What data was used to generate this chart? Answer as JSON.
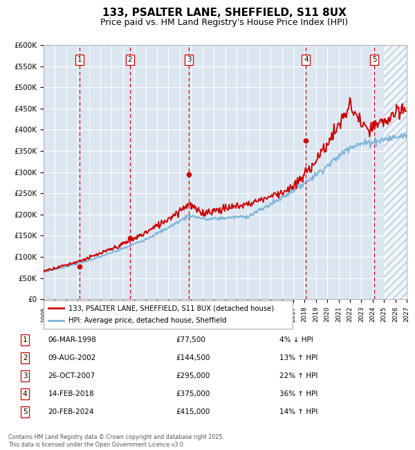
{
  "title": "133, PSALTER LANE, SHEFFIELD, S11 8UX",
  "subtitle": "Price paid vs. HM Land Registry's House Price Index (HPI)",
  "title_fontsize": 11,
  "subtitle_fontsize": 9,
  "bg_color": "#dce6f1",
  "hpi_color": "#7ab3d8",
  "price_color": "#cc0000",
  "dashed_line_color": "#cc0000",
  "ylim": [
    0,
    600000
  ],
  "yticks": [
    0,
    50000,
    100000,
    150000,
    200000,
    250000,
    300000,
    350000,
    400000,
    450000,
    500000,
    550000,
    600000
  ],
  "ytick_labels": [
    "£0",
    "£50K",
    "£100K",
    "£150K",
    "£200K",
    "£250K",
    "£300K",
    "£350K",
    "£400K",
    "£450K",
    "£500K",
    "£550K",
    "£600K"
  ],
  "legend_label_price": "133, PSALTER LANE, SHEFFIELD, S11 8UX (detached house)",
  "legend_label_hpi": "HPI: Average price, detached house, Sheffield",
  "sales": [
    {
      "num": "1",
      "date_num": 1998.18,
      "price": 77500
    },
    {
      "num": "2",
      "date_num": 2002.6,
      "price": 144500
    },
    {
      "num": "3",
      "date_num": 2007.82,
      "price": 295000
    },
    {
      "num": "4",
      "date_num": 2018.12,
      "price": 375000
    },
    {
      "num": "5",
      "date_num": 2024.14,
      "price": 415000
    }
  ],
  "table_rows": [
    {
      "num": "1",
      "date": "06-MAR-1998",
      "price": "£77,500",
      "hpi": "4% ↓ HPI"
    },
    {
      "num": "2",
      "date": "09-AUG-2002",
      "price": "£144,500",
      "hpi": "13% ↑ HPI"
    },
    {
      "num": "3",
      "date": "26-OCT-2007",
      "price": "£295,000",
      "hpi": "22% ↑ HPI"
    },
    {
      "num": "4",
      "date": "14-FEB-2018",
      "price": "£375,000",
      "hpi": "36% ↑ HPI"
    },
    {
      "num": "5",
      "date": "20-FEB-2024",
      "price": "£415,000",
      "hpi": "14% ↑ HPI"
    }
  ],
  "footnote": "Contains HM Land Registry data © Crown copyright and database right 2025.\nThis data is licensed under the Open Government Licence v3.0.",
  "xmin": 1995,
  "xmax": 2027,
  "future_x": 2025.0
}
